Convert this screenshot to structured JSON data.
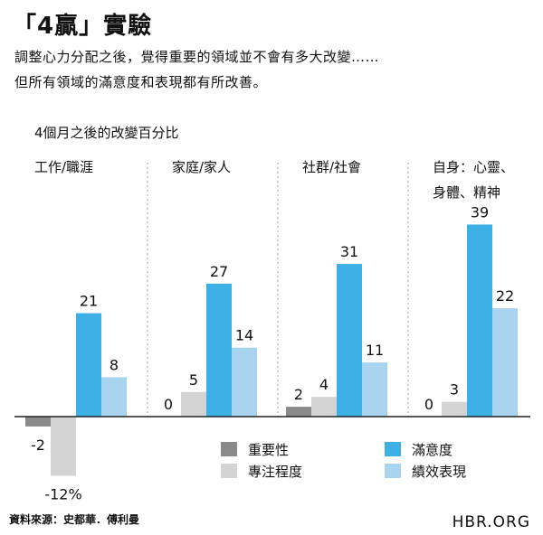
{
  "header": {
    "title": "「4贏」實驗",
    "subtitle_line1": "調整心力分配之後，覺得重要的領域並不會有多大改變……",
    "subtitle_line2": "但所有領域的滿意度和表現都有所改善。"
  },
  "chart_data": {
    "type": "bar",
    "title": "4個月之後的改變百分比",
    "unit_label": "%",
    "categories": [
      "工作/職涯",
      "家庭/家人",
      "社群/社會",
      "自身：心靈、身體、精神"
    ],
    "category_label_lines": [
      [
        "工作/職涯"
      ],
      [
        "家庭/家人"
      ],
      [
        "社群/社會"
      ],
      [
        "自身：心靈、",
        "身體、精神"
      ]
    ],
    "series": [
      {
        "name": "重要性",
        "color": "#8a8a8a",
        "values": [
          -2,
          0,
          2,
          0
        ]
      },
      {
        "name": "專注程度",
        "color": "#d4d4d4",
        "values": [
          -12,
          5,
          4,
          3
        ]
      },
      {
        "name": "滿意度",
        "color": "#3fb0e6",
        "values": [
          21,
          27,
          31,
          39
        ]
      },
      {
        "name": "績效表現",
        "color": "#a9d4f0",
        "values": [
          8,
          14,
          11,
          22
        ]
      }
    ],
    "value_labels": [
      [
        "-2",
        "-12%",
        "21",
        "8"
      ],
      [
        "0",
        "5",
        "27",
        "14"
      ],
      [
        "2",
        "4",
        "31",
        "11"
      ],
      [
        "0",
        "3",
        "39",
        "22"
      ]
    ],
    "legend_order": [
      0,
      2,
      1,
      3
    ],
    "ylim": [
      -14,
      40
    ],
    "grid": false,
    "legend_position": "bottom-right"
  },
  "footer": {
    "source": "資料來源：史都華．傅利曼",
    "brand": "HBR.ORG"
  }
}
